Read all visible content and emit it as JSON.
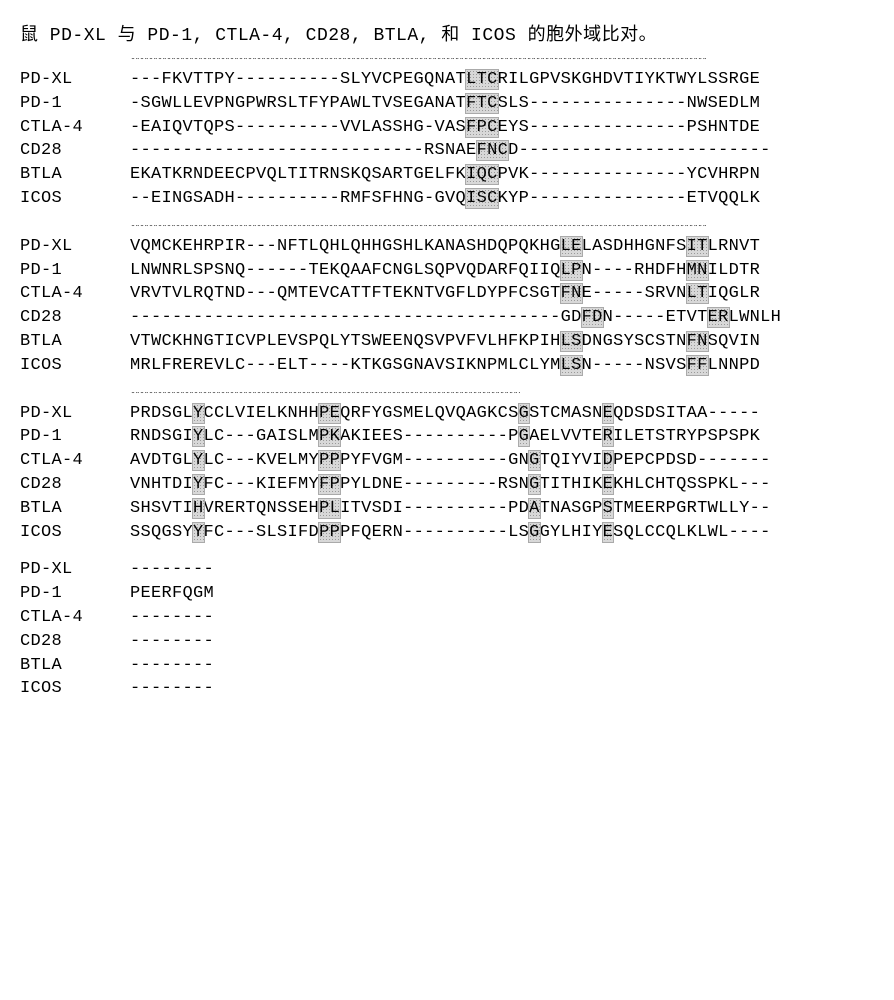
{
  "title": "鼠 PD-XL 与 PD-1, CTLA-4, CD28, BTLA, 和 ICOS 的胞外域比对。",
  "labels": [
    "PD-XL",
    "PD-1",
    "CTLA-4",
    "CD28",
    "BTLA",
    "ICOS"
  ],
  "ruler": "********************************************************************************************************************************",
  "ruler_widths": [
    720,
    720,
    390
  ],
  "label_width": 110,
  "font_size": 17,
  "highlight_bg": "#d8d8d8",
  "background": "#ffffff",
  "blocks": [
    {
      "has_ruler": true,
      "sequences": [
        [
          {
            "t": "---FKVTTPY----------SLYVCPEGQNAT"
          },
          {
            "t": "LTC",
            "h": true
          },
          {
            "t": "RILGPVSKGHDVTIYKTWYLSSRGE"
          }
        ],
        [
          {
            "t": "-SGWLLEVPNGPWRSLTFYPAWLTVSEGANAT"
          },
          {
            "t": "FTC",
            "h": true
          },
          {
            "t": "SLS---------------NWSEDLM"
          }
        ],
        [
          {
            "t": "-EAIQVTQPS----------VVLASSHG-VAS"
          },
          {
            "t": "FPC",
            "h": true
          },
          {
            "t": "EYS---------------PSHNTDE"
          }
        ],
        [
          {
            "t": "----------------------------RSNAE"
          },
          {
            "t": "FNC",
            "h": true
          },
          {
            "t": "D------------------------"
          }
        ],
        [
          {
            "t": "EKATKRNDEECPVQLTITRNSKQSARTGELFK"
          },
          {
            "t": "IQC",
            "h": true
          },
          {
            "t": "PVK---------------YCVHRPN"
          }
        ],
        [
          {
            "t": "--EINGSADH----------RMFSFHNG-GVQ"
          },
          {
            "t": "ISC",
            "h": true
          },
          {
            "t": "KYP---------------ETVQQLK"
          }
        ]
      ]
    },
    {
      "has_ruler": true,
      "sequences": [
        [
          {
            "t": "VQMCKEHRPIR---NFTLQHLQHHGSHLKANASHDQPQKHG"
          },
          {
            "t": "LE",
            "h": true
          },
          {
            "t": "LASDHHGNFS"
          },
          {
            "t": "IT",
            "h": true
          },
          {
            "t": "LRNVT"
          }
        ],
        [
          {
            "t": "LNWNRLSPSNQ------TEKQAAFCNGLSQPVQDARFQIIQ"
          },
          {
            "t": "LP",
            "h": true
          },
          {
            "t": "N----RHDFH"
          },
          {
            "t": "MN",
            "h": true
          },
          {
            "t": "ILDTR"
          }
        ],
        [
          {
            "t": "VRVTVLRQTND---QMTEVCATTFTEKNTVGFLDYPFCSGT"
          },
          {
            "t": "FN",
            "h": true
          },
          {
            "t": "E-----SRVN"
          },
          {
            "t": "LT",
            "h": true
          },
          {
            "t": "IQGLR"
          }
        ],
        [
          {
            "t": "-----------------------------------------GD"
          },
          {
            "t": "FD",
            "h": true
          },
          {
            "t": "N-----ETVT"
          },
          {
            "t": "ER",
            "h": true
          },
          {
            "t": "LWNLH"
          }
        ],
        [
          {
            "t": "VTWCKHNGTICVPLEVSPQLYTSWEENQSVPVFVLHFKPIH"
          },
          {
            "t": "LS",
            "h": true
          },
          {
            "t": "DNGSYSCSTN"
          },
          {
            "t": "FN",
            "h": true
          },
          {
            "t": "SQVIN"
          }
        ],
        [
          {
            "t": "MRLFREREVLC---ELT----KTKGSGNAVSIKNPMLCLYM"
          },
          {
            "t": "LS",
            "h": true
          },
          {
            "t": "N-----NSVS"
          },
          {
            "t": "FF",
            "h": true
          },
          {
            "t": "LNNPD"
          }
        ]
      ]
    },
    {
      "has_ruler": true,
      "sequences": [
        [
          {
            "t": "PRDSGL"
          },
          {
            "t": "Y",
            "h": true
          },
          {
            "t": "CCLVIELKNHH"
          },
          {
            "t": "PE",
            "h": true
          },
          {
            "t": "QRFYGSMELQVQAGKCS"
          },
          {
            "t": "G",
            "h": true
          },
          {
            "t": "STCMASN"
          },
          {
            "t": "E",
            "h": true
          },
          {
            "t": "QDSDSITAA-----"
          }
        ],
        [
          {
            "t": "RNDSGI"
          },
          {
            "t": "Y",
            "h": true
          },
          {
            "t": "LC---GAISLM"
          },
          {
            "t": "PK",
            "h": true
          },
          {
            "t": "AKIEES----------P"
          },
          {
            "t": "G",
            "h": true
          },
          {
            "t": "AELVVTE"
          },
          {
            "t": "R",
            "h": true
          },
          {
            "t": "ILETSTRYPSPSPK"
          }
        ],
        [
          {
            "t": "AVDTGL"
          },
          {
            "t": "Y",
            "h": true
          },
          {
            "t": "LC---KVELMY"
          },
          {
            "t": "PP",
            "h": true
          },
          {
            "t": "PYFVGM----------GN"
          },
          {
            "t": "G",
            "h": true
          },
          {
            "t": "TQIYVI"
          },
          {
            "t": "D",
            "h": true
          },
          {
            "t": "PEPCPDSD-------"
          }
        ],
        [
          {
            "t": "VNHTDI"
          },
          {
            "t": "Y",
            "h": true
          },
          {
            "t": "FC---KIEFMY"
          },
          {
            "t": "FP",
            "h": true
          },
          {
            "t": "PYLDNE---------RSN"
          },
          {
            "t": "G",
            "h": true
          },
          {
            "t": "TITHIK"
          },
          {
            "t": "E",
            "h": true
          },
          {
            "t": "KHLCHTQSSPKL---"
          }
        ],
        [
          {
            "t": "SHSVTI"
          },
          {
            "t": "H",
            "h": true
          },
          {
            "t": "VRERTQNSSEH"
          },
          {
            "t": "PL",
            "h": true
          },
          {
            "t": "ITVSDI----------PD"
          },
          {
            "t": "A",
            "h": true
          },
          {
            "t": "TNASGP"
          },
          {
            "t": "S",
            "h": true
          },
          {
            "t": "TMEERPGRTWLLY--"
          }
        ],
        [
          {
            "t": "SSQGSY"
          },
          {
            "t": "Y",
            "h": true
          },
          {
            "t": "FC---SLSIFD"
          },
          {
            "t": "PP",
            "h": true
          },
          {
            "t": "PFQERN----------LS"
          },
          {
            "t": "G",
            "h": true
          },
          {
            "t": "GYLHIY"
          },
          {
            "t": "E",
            "h": true
          },
          {
            "t": "SQLCCQLKLWL----"
          }
        ]
      ]
    },
    {
      "has_ruler": false,
      "sequences": [
        [
          {
            "t": "--------"
          }
        ],
        [
          {
            "t": "PEERFQGM"
          }
        ],
        [
          {
            "t": "--------"
          }
        ],
        [
          {
            "t": "--------"
          }
        ],
        [
          {
            "t": "--------"
          }
        ],
        [
          {
            "t": "--------"
          }
        ]
      ]
    }
  ]
}
